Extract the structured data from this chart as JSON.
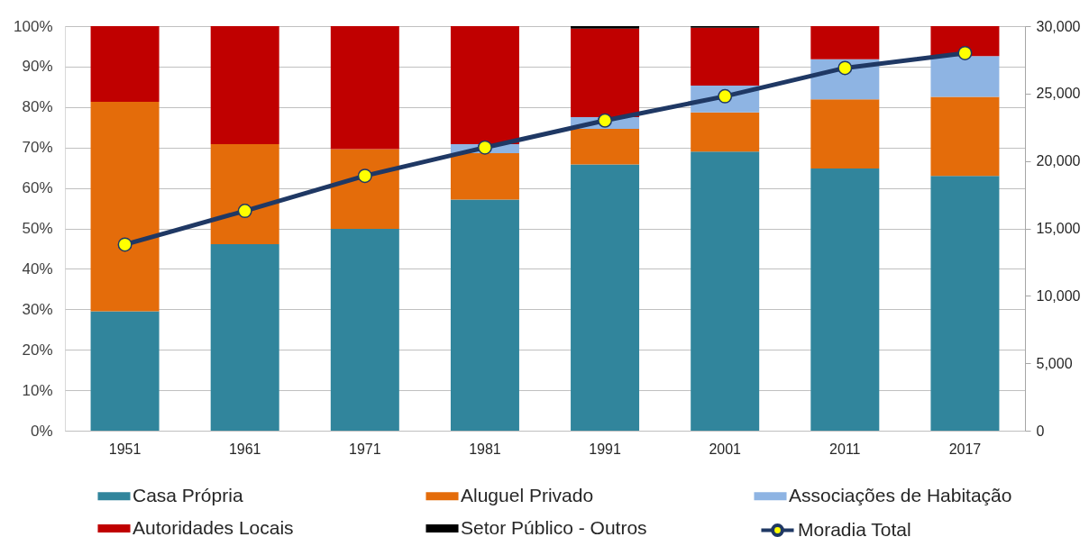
{
  "chart_data": {
    "type": "bar",
    "stacked": true,
    "categories": [
      "1951",
      "1961",
      "1971",
      "1981",
      "1991",
      "2001",
      "2011",
      "2017"
    ],
    "ylim": [
      0,
      100
    ],
    "yticks": [
      {
        "value": 0,
        "label": "0%"
      },
      {
        "value": 10,
        "label": "10%"
      },
      {
        "value": 20,
        "label": "20%"
      },
      {
        "value": 30,
        "label": "30%"
      },
      {
        "value": 40,
        "label": "40%"
      },
      {
        "value": 50,
        "label": "50%"
      },
      {
        "value": 60,
        "label": "60%"
      },
      {
        "value": 70,
        "label": "70%"
      },
      {
        "value": 80,
        "label": "80%"
      },
      {
        "value": 90,
        "label": "90%"
      },
      {
        "value": 100,
        "label": "100%"
      }
    ],
    "y2lim": [
      0,
      30000
    ],
    "y2ticks": [
      0,
      {
        "value": 5000,
        "label": "5,000"
      },
      {
        "value": 10000,
        "label": "10,000"
      },
      {
        "value": 15000,
        "label": "15,000"
      },
      {
        "value": 20000,
        "label": "20,000"
      },
      {
        "value": 25000,
        "label": "25,000"
      },
      {
        "value": 30000,
        "label": "30,000"
      }
    ],
    "series": [
      {
        "name": "Casa Própria",
        "color": "#31859c",
        "values": [
          29.5,
          46.1,
          49.9,
          57.1,
          65.8,
          69.0,
          64.8,
          63.0
        ]
      },
      {
        "name": "Aluguel Privado",
        "color": "#e46c0a",
        "values": [
          51.8,
          24.7,
          19.7,
          11.5,
          8.8,
          9.7,
          17.1,
          19.5
        ]
      },
      {
        "name": "Associações de Habitação",
        "color": "#8eb4e3",
        "values": [
          null,
          null,
          null,
          2.2,
          2.9,
          6.6,
          9.9,
          10.1
        ]
      },
      {
        "name": "Autoridades Locais",
        "color": "#c00000",
        "values": [
          18.7,
          29.2,
          30.4,
          29.2,
          21.9,
          14.3,
          8.2,
          7.4
        ]
      },
      {
        "name": "Setor Público - Outros",
        "color": "#000000",
        "values": [
          null,
          null,
          null,
          null,
          0.6,
          0.4,
          null,
          null
        ]
      },
      {
        "name": "Moradia Total",
        "type": "line",
        "axis": "y2",
        "color": "#1f3864",
        "marker": "circle",
        "values": [
          13800,
          16300,
          18900,
          21000,
          23000,
          24800,
          26900,
          28000
        ]
      }
    ],
    "grid": "y",
    "legend": "bottom"
  }
}
